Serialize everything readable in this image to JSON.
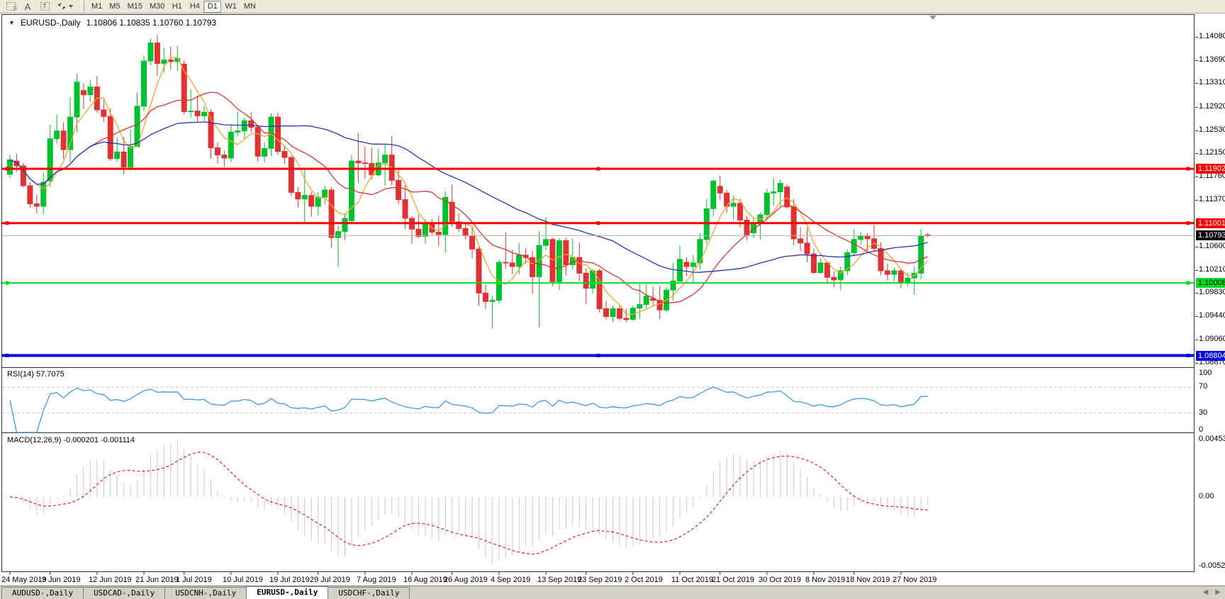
{
  "toolbar": {
    "timeframes": [
      "M1",
      "M5",
      "M15",
      "M30",
      "H1",
      "H4",
      "D1",
      "W1",
      "MN"
    ],
    "active_timeframe": "D1"
  },
  "chart_header": {
    "title": "EURUSD-,Daily",
    "ohlc": "1.10806 1.10835 1.10760 1.10793"
  },
  "panels": {
    "rsi": {
      "label": "RSI(14) 57.7075",
      "axis_labels": [
        "100",
        "70",
        "30",
        "0"
      ]
    },
    "macd": {
      "label": "MACD(12,26,9) -0.000201 -0.001114",
      "axis_labels": [
        "0.004536",
        "0.00",
        "-0.005205"
      ]
    }
  },
  "price_axis": {
    "tick_labels": [
      "1.14080",
      "1.13690",
      "1.13310",
      "1.12920",
      "1.12530",
      "1.12150",
      "1.11760",
      "1.11370",
      "1.10600",
      "1.10210",
      "1.09830",
      "1.09440",
      "1.09060",
      "1.08670"
    ],
    "badges": [
      {
        "text": "1.11902",
        "bg": "#FF0000",
        "fg": "#FFFFFF"
      },
      {
        "text": "1.11001",
        "bg": "#FF0000",
        "fg": "#FFFFFF"
      },
      {
        "text": "1.10793",
        "bg": "#000000",
        "fg": "#FFFFFF"
      },
      {
        "text": "1.10008",
        "bg": "#00DD22",
        "fg": "#000000"
      },
      {
        "text": "1.08804",
        "bg": "#0000E6",
        "fg": "#FFFFFF"
      }
    ]
  },
  "date_axis": {
    "ticks": [
      {
        "label": "24 May 2019",
        "bar_index": 0
      },
      {
        "label": "3 Jun 2019",
        "bar_index": 6
      },
      {
        "label": "12 Jun 2019",
        "bar_index": 13
      },
      {
        "label": "21 Jun 2019",
        "bar_index": 20
      },
      {
        "label": "1 Jul 2019",
        "bar_index": 26
      },
      {
        "label": "10 Jul 2019",
        "bar_index": 33
      },
      {
        "label": "19 Jul 2019",
        "bar_index": 40
      },
      {
        "label": "29 Jul 2019",
        "bar_index": 46
      },
      {
        "label": "7 Aug 2019",
        "bar_index": 53
      },
      {
        "label": "16 Aug 2019",
        "bar_index": 60
      },
      {
        "label": "26 Aug 2019",
        "bar_index": 66
      },
      {
        "label": "4 Sep 2019",
        "bar_index": 73
      },
      {
        "label": "13 Sep 2019",
        "bar_index": 80
      },
      {
        "label": "23 Sep 2019",
        "bar_index": 86
      },
      {
        "label": "2 Oct 2019",
        "bar_index": 93
      },
      {
        "label": "11 Oct 2019",
        "bar_index": 100
      },
      {
        "label": "21 Oct 2019",
        "bar_index": 106
      },
      {
        "label": "30 Oct 2019",
        "bar_index": 113
      },
      {
        "label": "8 Nov 2019",
        "bar_index": 120
      },
      {
        "label": "18 Nov 2019",
        "bar_index": 126
      },
      {
        "label": "27 Nov 2019",
        "bar_index": 133
      }
    ]
  },
  "tabs": [
    {
      "label": "AUDUSD-,Daily",
      "active": false
    },
    {
      "label": "USDCAD-,Daily",
      "active": false
    },
    {
      "label": "USDCNH-,Daily",
      "active": false
    },
    {
      "label": "EURUSD-,Daily",
      "active": true
    },
    {
      "label": "USDCHF-,Daily",
      "active": false
    }
  ],
  "colors": {
    "candle_up": "#00C22E",
    "candle_down": "#E03232",
    "ma_fast": "#F5A32A",
    "ma_mid": "#D43737",
    "ma_slow": "#2B32B2",
    "rsi_line": "#3E9ADE",
    "macd_hist": "#C8C8C8",
    "macd_signal": "#E02020",
    "hline_red": "#FF0000",
    "hline_green": "#00DD22",
    "hline_blue": "#0000E6",
    "bid_line": "#B3B3B3",
    "level_dash": "#C8C8C8"
  },
  "chart_data": {
    "type": "candlestick",
    "symbol": "EURUSD-",
    "timeframe": "Daily",
    "last_bar_ohlc": {
      "open": 1.10806,
      "high": 1.10835,
      "low": 1.1076,
      "close": 1.10793
    },
    "y_axis_range": [
      1.086,
      1.1446
    ],
    "current_price": 1.10793,
    "horizontal_lines": [
      {
        "price": 1.11902,
        "color": "#FF0000",
        "width": 3
      },
      {
        "price": 1.11001,
        "color": "#FF0000",
        "width": 3
      },
      {
        "price": 1.10008,
        "color": "#00DD22",
        "width": 2
      },
      {
        "price": 1.08804,
        "color": "#0000E6",
        "width": 4
      }
    ],
    "moving_averages": [
      {
        "type": "sma",
        "period": 5,
        "color": "#F5A32A"
      },
      {
        "type": "sma",
        "period": 13,
        "color": "#D43737"
      },
      {
        "type": "sma",
        "period": 40,
        "color": "#2B32B2"
      }
    ],
    "rsi": {
      "period": 14,
      "value": 57.7075,
      "levels": [
        70,
        30
      ],
      "scale": [
        0,
        100
      ]
    },
    "macd": {
      "fast": 12,
      "slow": 26,
      "signal": 9,
      "value": -0.000201,
      "signal_value": -0.001114,
      "scale": [
        -0.005205,
        0.004536
      ]
    },
    "candles": [
      [
        "2019-05-24",
        1.1181,
        1.1213,
        1.1175,
        1.1205
      ],
      [
        "2019-05-27",
        1.1203,
        1.1215,
        1.1185,
        1.1195
      ],
      [
        "2019-05-28",
        1.1195,
        1.12,
        1.1159,
        1.1162
      ],
      [
        "2019-05-29",
        1.1162,
        1.1168,
        1.1125,
        1.1132
      ],
      [
        "2019-05-30",
        1.1132,
        1.1147,
        1.1116,
        1.1128
      ],
      [
        "2019-05-31",
        1.1128,
        1.1183,
        1.1115,
        1.1168
      ],
      [
        "2019-06-03",
        1.117,
        1.1263,
        1.116,
        1.124
      ],
      [
        "2019-06-04",
        1.124,
        1.128,
        1.1232,
        1.1253
      ],
      [
        "2019-06-05",
        1.1253,
        1.1267,
        1.1207,
        1.1222
      ],
      [
        "2019-06-06",
        1.1222,
        1.1309,
        1.1201,
        1.1276
      ],
      [
        "2019-06-07",
        1.1276,
        1.1348,
        1.1251,
        1.1334
      ],
      [
        "2019-06-10",
        1.132,
        1.1332,
        1.1289,
        1.1313
      ],
      [
        "2019-06-11",
        1.1313,
        1.1338,
        1.1301,
        1.1326
      ],
      [
        "2019-06-12",
        1.1326,
        1.1344,
        1.1283,
        1.1288
      ],
      [
        "2019-06-13",
        1.1288,
        1.1305,
        1.1268,
        1.1277
      ],
      [
        "2019-06-14",
        1.1277,
        1.129,
        1.1203,
        1.1207
      ],
      [
        "2019-06-17",
        1.1207,
        1.1242,
        1.1202,
        1.1218
      ],
      [
        "2019-06-18",
        1.1218,
        1.1243,
        1.1181,
        1.1193
      ],
      [
        "2019-06-19",
        1.1193,
        1.1255,
        1.1187,
        1.1227
      ],
      [
        "2019-06-20",
        1.1227,
        1.1317,
        1.1226,
        1.1294
      ],
      [
        "2019-06-21",
        1.1294,
        1.1378,
        1.1286,
        1.1369
      ],
      [
        "2019-06-24",
        1.1369,
        1.1406,
        1.1362,
        1.1399
      ],
      [
        "2019-06-25",
        1.1399,
        1.1412,
        1.1344,
        1.1365
      ],
      [
        "2019-06-26",
        1.1365,
        1.1391,
        1.135,
        1.1371
      ],
      [
        "2019-06-27",
        1.1371,
        1.1393,
        1.1355,
        1.1368
      ],
      [
        "2019-06-28",
        1.1368,
        1.1394,
        1.1352,
        1.1373
      ],
      [
        "2019-07-01",
        1.1364,
        1.137,
        1.128,
        1.1285
      ],
      [
        "2019-07-02",
        1.1285,
        1.1322,
        1.1275,
        1.1286
      ],
      [
        "2019-07-03",
        1.1286,
        1.1312,
        1.1268,
        1.1278
      ],
      [
        "2019-07-04",
        1.1278,
        1.1295,
        1.1269,
        1.1284
      ],
      [
        "2019-07-05",
        1.1284,
        1.1289,
        1.1207,
        1.1225
      ],
      [
        "2019-07-08",
        1.1225,
        1.1234,
        1.1199,
        1.1213
      ],
      [
        "2019-07-09",
        1.1213,
        1.122,
        1.1193,
        1.1208
      ],
      [
        "2019-07-10",
        1.1208,
        1.1264,
        1.1201,
        1.1251
      ],
      [
        "2019-07-11",
        1.1251,
        1.1285,
        1.1244,
        1.1253
      ],
      [
        "2019-07-12",
        1.1253,
        1.1275,
        1.1239,
        1.127
      ],
      [
        "2019-07-15",
        1.127,
        1.1284,
        1.1251,
        1.1259
      ],
      [
        "2019-07-16",
        1.1259,
        1.1262,
        1.1202,
        1.1211
      ],
      [
        "2019-07-17",
        1.1211,
        1.1234,
        1.1201,
        1.1224
      ],
      [
        "2019-07-18",
        1.1224,
        1.1282,
        1.1211,
        1.1276
      ],
      [
        "2019-07-19",
        1.1276,
        1.1283,
        1.1213,
        1.1219
      ],
      [
        "2019-07-22",
        1.1219,
        1.1227,
        1.1198,
        1.1209
      ],
      [
        "2019-07-23",
        1.1209,
        1.1212,
        1.1145,
        1.1151
      ],
      [
        "2019-07-24",
        1.1151,
        1.116,
        1.1126,
        1.114
      ],
      [
        "2019-07-25",
        1.114,
        1.1188,
        1.1101,
        1.1146
      ],
      [
        "2019-07-26",
        1.1146,
        1.1152,
        1.1111,
        1.1128
      ],
      [
        "2019-07-29",
        1.1128,
        1.1151,
        1.1113,
        1.1143
      ],
      [
        "2019-07-30",
        1.1143,
        1.1162,
        1.1131,
        1.1155
      ],
      [
        "2019-07-31",
        1.1155,
        1.116,
        1.1059,
        1.1076
      ],
      [
        "2019-08-01",
        1.1076,
        1.1096,
        1.1027,
        1.1086
      ],
      [
        "2019-08-02",
        1.1086,
        1.1116,
        1.1072,
        1.1108
      ],
      [
        "2019-08-05",
        1.1104,
        1.1213,
        1.1101,
        1.1203
      ],
      [
        "2019-08-06",
        1.1203,
        1.1249,
        1.1167,
        1.12
      ],
      [
        "2019-08-07",
        1.12,
        1.1227,
        1.1174,
        1.1199
      ],
      [
        "2019-08-08",
        1.1199,
        1.1225,
        1.1173,
        1.118
      ],
      [
        "2019-08-09",
        1.118,
        1.1223,
        1.1177,
        1.12
      ],
      [
        "2019-08-12",
        1.12,
        1.123,
        1.1162,
        1.1213
      ],
      [
        "2019-08-13",
        1.1213,
        1.1245,
        1.1163,
        1.1171
      ],
      [
        "2019-08-14",
        1.1171,
        1.119,
        1.1131,
        1.1139
      ],
      [
        "2019-08-15",
        1.1139,
        1.1163,
        1.1091,
        1.1108
      ],
      [
        "2019-08-16",
        1.1108,
        1.1112,
        1.1066,
        1.109
      ],
      [
        "2019-08-19",
        1.109,
        1.1114,
        1.1075,
        1.1078
      ],
      [
        "2019-08-20",
        1.1078,
        1.1107,
        1.1066,
        1.11
      ],
      [
        "2019-08-21",
        1.11,
        1.1107,
        1.1081,
        1.1085
      ],
      [
        "2019-08-22",
        1.1085,
        1.1113,
        1.1062,
        1.1081
      ],
      [
        "2019-08-23",
        1.1081,
        1.1153,
        1.1051,
        1.1143
      ],
      [
        "2019-08-26",
        1.1135,
        1.1164,
        1.1094,
        1.1102
      ],
      [
        "2019-08-27",
        1.1102,
        1.1116,
        1.1086,
        1.1091
      ],
      [
        "2019-08-28",
        1.1091,
        1.1098,
        1.1073,
        1.1079
      ],
      [
        "2019-08-29",
        1.1079,
        1.1094,
        1.1042,
        1.1057
      ],
      [
        "2019-08-30",
        1.1057,
        1.1061,
        1.0963,
        1.0984
      ],
      [
        "2019-09-02",
        1.0984,
        1.0998,
        1.0958,
        1.097
      ],
      [
        "2019-09-03",
        1.097,
        1.0979,
        1.0926,
        1.0972
      ],
      [
        "2019-09-04",
        1.0972,
        1.1039,
        1.0967,
        1.1035
      ],
      [
        "2019-09-05",
        1.1035,
        1.1085,
        1.1024,
        1.1034
      ],
      [
        "2019-09-06",
        1.1034,
        1.1056,
        1.1015,
        1.1028
      ],
      [
        "2019-09-09",
        1.1028,
        1.1067,
        1.1015,
        1.1047
      ],
      [
        "2019-09-10",
        1.1047,
        1.1059,
        1.1032,
        1.1043
      ],
      [
        "2019-09-11",
        1.1043,
        1.1054,
        1.0983,
        1.1011
      ],
      [
        "2019-09-12",
        1.1011,
        1.1087,
        1.0927,
        1.1063
      ],
      [
        "2019-09-13",
        1.1063,
        1.111,
        1.1055,
        1.1073
      ],
      [
        "2019-09-16",
        1.1073,
        1.1076,
        1.0995,
        1.1003
      ],
      [
        "2019-09-17",
        1.1003,
        1.1075,
        1.0989,
        1.1071
      ],
      [
        "2019-09-18",
        1.1071,
        1.1076,
        1.1013,
        1.1031
      ],
      [
        "2019-09-19",
        1.1031,
        1.1074,
        1.1023,
        1.1043
      ],
      [
        "2019-09-20",
        1.1043,
        1.1068,
        1.1004,
        1.1017
      ],
      [
        "2019-09-23",
        1.1017,
        1.1025,
        1.0966,
        1.0992
      ],
      [
        "2019-09-24",
        1.0992,
        1.1024,
        1.0983,
        1.1021
      ],
      [
        "2019-09-25",
        1.1021,
        1.1024,
        1.0952,
        1.0958
      ],
      [
        "2019-09-26",
        1.0958,
        1.0971,
        1.094,
        1.0945
      ],
      [
        "2019-09-27",
        1.0945,
        1.0963,
        1.0936,
        1.0958
      ],
      [
        "2019-09-30",
        1.0958,
        1.0963,
        1.0938,
        1.0942
      ],
      [
        "2019-10-01",
        1.0942,
        1.0958,
        1.0936,
        1.094
      ],
      [
        "2019-10-02",
        1.094,
        1.0963,
        1.0938,
        1.0959
      ],
      [
        "2019-10-03",
        1.0959,
        1.0999,
        1.0941,
        1.0965
      ],
      [
        "2019-10-04",
        1.0965,
        1.0999,
        1.0957,
        1.0979
      ],
      [
        "2019-10-07",
        1.0975,
        1.0995,
        1.0962,
        1.0972
      ],
      [
        "2019-10-08",
        1.0972,
        1.0996,
        1.0941,
        1.0956
      ],
      [
        "2019-10-09",
        1.0956,
        1.0994,
        1.0953,
        1.0989
      ],
      [
        "2019-10-10",
        1.0989,
        1.1034,
        1.0972,
        1.1004
      ],
      [
        "2019-10-11",
        1.1004,
        1.1063,
        1.1002,
        1.104
      ],
      [
        "2019-10-14",
        1.1035,
        1.1043,
        1.1012,
        1.1028
      ],
      [
        "2019-10-15",
        1.1028,
        1.1047,
        1.1001,
        1.1034
      ],
      [
        "2019-10-16",
        1.1034,
        1.1083,
        1.1023,
        1.1073
      ],
      [
        "2019-10-17",
        1.1073,
        1.114,
        1.1065,
        1.1124
      ],
      [
        "2019-10-18",
        1.1124,
        1.1172,
        1.1111,
        1.117
      ],
      [
        "2019-10-21",
        1.1161,
        1.1179,
        1.1138,
        1.115
      ],
      [
        "2019-10-22",
        1.115,
        1.1155,
        1.1117,
        1.1128
      ],
      [
        "2019-10-23",
        1.1128,
        1.1146,
        1.1105,
        1.1133
      ],
      [
        "2019-10-24",
        1.1133,
        1.1141,
        1.1093,
        1.1105
      ],
      [
        "2019-10-25",
        1.1105,
        1.1112,
        1.1072,
        1.108
      ],
      [
        "2019-10-28",
        1.1084,
        1.1108,
        1.1075,
        1.1099
      ],
      [
        "2019-10-29",
        1.1099,
        1.1118,
        1.1073,
        1.1114
      ],
      [
        "2019-10-30",
        1.1114,
        1.1157,
        1.1106,
        1.115
      ],
      [
        "2019-10-31",
        1.115,
        1.1175,
        1.1129,
        1.1152
      ],
      [
        "2019-11-01",
        1.1152,
        1.1172,
        1.1128,
        1.1166
      ],
      [
        "2019-11-04",
        1.116,
        1.1164,
        1.1124,
        1.1127
      ],
      [
        "2019-11-05",
        1.1127,
        1.114,
        1.1063,
        1.1074
      ],
      [
        "2019-11-06",
        1.1074,
        1.1093,
        1.1054,
        1.1067
      ],
      [
        "2019-11-07",
        1.1067,
        1.1092,
        1.1035,
        1.1049
      ],
      [
        "2019-11-08",
        1.1049,
        1.1058,
        1.1016,
        1.1018
      ],
      [
        "2019-11-11",
        1.1018,
        1.1042,
        1.1016,
        1.1034
      ],
      [
        "2019-11-12",
        1.1034,
        1.1037,
        1.1002,
        1.101
      ],
      [
        "2019-11-13",
        1.101,
        1.102,
        1.0994,
        1.1006
      ],
      [
        "2019-11-14",
        1.1006,
        1.1028,
        1.0989,
        1.1021
      ],
      [
        "2019-11-15",
        1.1021,
        1.1056,
        1.1014,
        1.1051
      ],
      [
        "2019-11-18",
        1.1051,
        1.109,
        1.1045,
        1.1073
      ],
      [
        "2019-11-19",
        1.1073,
        1.1085,
        1.1064,
        1.1078
      ],
      [
        "2019-11-20",
        1.1078,
        1.1083,
        1.1052,
        1.1074
      ],
      [
        "2019-11-21",
        1.1074,
        1.1097,
        1.1052,
        1.1058
      ],
      [
        "2019-11-22",
        1.1058,
        1.1068,
        1.1014,
        1.1021
      ],
      [
        "2019-11-25",
        1.1021,
        1.1033,
        1.1005,
        1.1015
      ],
      [
        "2019-11-26",
        1.1015,
        1.1026,
        1.1003,
        1.1021
      ],
      [
        "2019-11-27",
        1.1021,
        1.1025,
        1.0992,
        1.1001
      ],
      [
        "2019-11-28",
        1.1001,
        1.1017,
        1.0995,
        1.1009
      ],
      [
        "2019-11-29",
        1.1009,
        1.1028,
        1.0981,
        1.1017
      ],
      [
        "2019-12-02",
        1.1017,
        1.109,
        1.1007,
        1.1079
      ],
      [
        "2019-12-03",
        1.10806,
        1.10835,
        1.1076,
        1.10793
      ]
    ]
  }
}
